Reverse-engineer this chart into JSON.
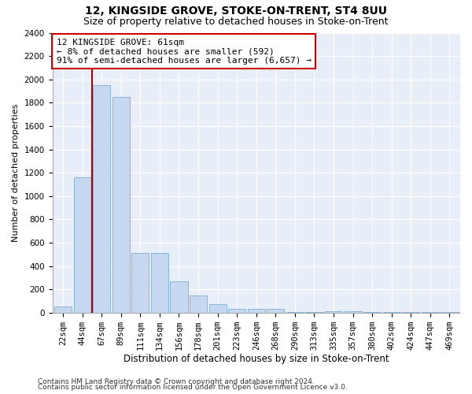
{
  "title": "12, KINGSIDE GROVE, STOKE-ON-TRENT, ST4 8UU",
  "subtitle": "Size of property relative to detached houses in Stoke-on-Trent",
  "xlabel": "Distribution of detached houses by size in Stoke-on-Trent",
  "ylabel": "Number of detached properties",
  "footer1": "Contains HM Land Registry data © Crown copyright and database right 2024.",
  "footer2": "Contains public sector information licensed under the Open Government Licence v3.0.",
  "annotation_title": "12 KINGSIDE GROVE: 61sqm",
  "annotation_line2": "← 8% of detached houses are smaller (592)",
  "annotation_line3": "91% of semi-detached houses are larger (6,657) →",
  "bar_color": "#c5d8ef",
  "bar_edge_color": "#7aadd4",
  "highlight_line_color": "#aa0000",
  "annotation_box_edge_color": "#cc0000",
  "bg_color": "#e8eef8",
  "categories": [
    "22sqm",
    "44sqm",
    "67sqm",
    "89sqm",
    "111sqm",
    "134sqm",
    "156sqm",
    "178sqm",
    "201sqm",
    "223sqm",
    "246sqm",
    "268sqm",
    "290sqm",
    "313sqm",
    "335sqm",
    "357sqm",
    "380sqm",
    "402sqm",
    "424sqm",
    "447sqm",
    "469sqm"
  ],
  "values": [
    55,
    1160,
    1950,
    1850,
    510,
    510,
    265,
    150,
    70,
    35,
    35,
    30,
    8,
    8,
    15,
    12,
    8,
    5,
    5,
    3,
    2
  ],
  "ylim": [
    0,
    2400
  ],
  "yticks": [
    0,
    200,
    400,
    600,
    800,
    1000,
    1200,
    1400,
    1600,
    1800,
    2000,
    2200,
    2400
  ],
  "red_line_x": 1.5,
  "title_fontsize": 10,
  "subtitle_fontsize": 9,
  "xlabel_fontsize": 8.5,
  "ylabel_fontsize": 8,
  "tick_fontsize": 7.5,
  "annotation_fontsize": 8,
  "footer_fontsize": 6.5
}
